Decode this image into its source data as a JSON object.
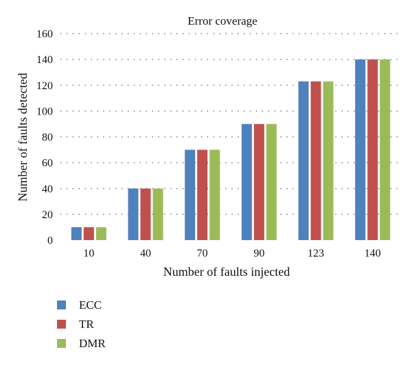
{
  "chart_data": {
    "type": "bar",
    "title": "Error coverage",
    "xlabel": "Number of faults injected",
    "ylabel": "Number of faults detected",
    "categories": [
      "10",
      "40",
      "70",
      "90",
      "123",
      "140"
    ],
    "series": [
      {
        "name": "ECC",
        "color": "#4f81bd",
        "values": [
          10,
          40,
          70,
          90,
          123,
          140
        ]
      },
      {
        "name": "TR",
        "color": "#c0504d",
        "values": [
          10,
          40,
          70,
          90,
          123,
          140
        ]
      },
      {
        "name": "DMR",
        "color": "#9bbb59",
        "values": [
          10,
          40,
          70,
          90,
          123,
          140
        ]
      }
    ],
    "ylim": [
      0,
      160
    ],
    "yticks": [
      "0",
      "20",
      "40",
      "60",
      "80",
      "100",
      "120",
      "140",
      "160"
    ],
    "grid": true,
    "legend_position": "bottom-left"
  }
}
